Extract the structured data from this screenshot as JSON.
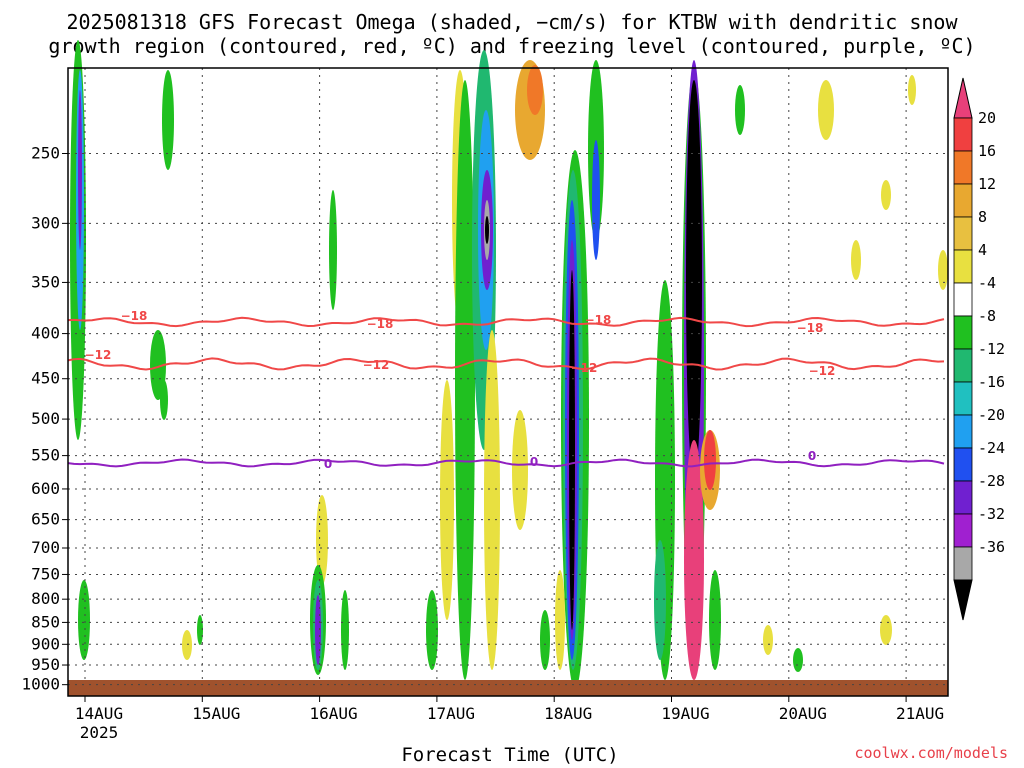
{
  "chart_data": {
    "type": "heatmap",
    "title_line1": "2025081318 GFS Forecast Omega (shaded, −cm/s) for KTBW with dendritic snow",
    "title_line2": "growth region (contoured, red, ºC) and freezing level (contoured, purple, ºC)",
    "xlabel": "Forecast Time (UTC)",
    "ylabel": "",
    "x_ticks": [
      "14AUG",
      "15AUG",
      "16AUG",
      "17AUG",
      "18AUG",
      "19AUG",
      "20AUG",
      "21AUG"
    ],
    "x_year": "2025",
    "y_ticks": [
      250,
      300,
      350,
      400,
      450,
      500,
      550,
      600,
      650,
      700,
      750,
      800,
      850,
      900,
      950,
      1000
    ],
    "y_scale": "log-pressure",
    "grid": true,
    "colorbar": {
      "labels": [
        20,
        16,
        12,
        8,
        4,
        -4,
        -8,
        -12,
        -16,
        -20,
        -24,
        -28,
        -32,
        -36
      ],
      "colors": [
        "#e8407a",
        "#f04040",
        "#f07828",
        "#e8a830",
        "#e8c040",
        "#e8e040",
        "#ffffff",
        "#20c020",
        "#20b870",
        "#20c0c0",
        "#20a0f0",
        "#2050f0",
        "#7020d0",
        "#a020d0",
        "#a8a8a8",
        "#000000"
      ]
    },
    "contours": [
      {
        "name": "red",
        "level": -18
      },
      {
        "name": "red",
        "level": -12
      },
      {
        "name": "purple",
        "level": 0
      }
    ]
  },
  "watermark": "coolwx.com/models"
}
